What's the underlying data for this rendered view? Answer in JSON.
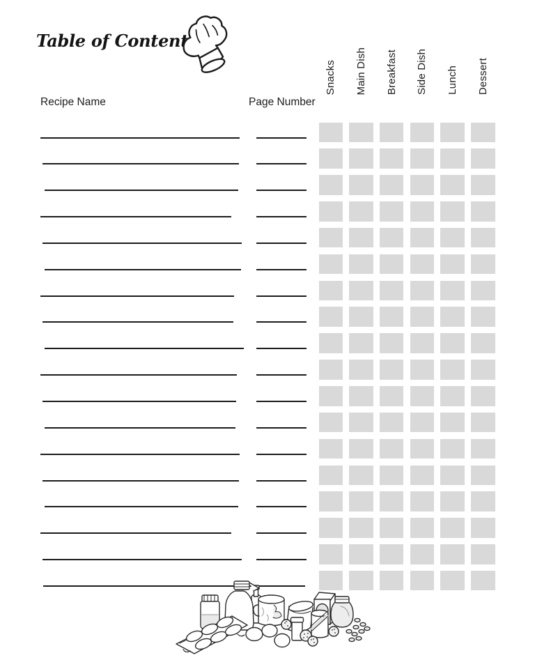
{
  "page": {
    "title": "Table of Contents"
  },
  "header": {
    "recipe_name_label": "Recipe Name",
    "page_number_label": "Page Number"
  },
  "categories": [
    "Snacks",
    "Main Dish",
    "Breakfast",
    "Side Dish",
    "Lunch",
    "Dessert"
  ],
  "table": {
    "row_count": 18
  },
  "icons": {
    "chef_hat": "chef-hat-line-drawing",
    "footer_illustration": "baking-ingredients-line-drawing"
  },
  "colors": {
    "background": "#ffffff",
    "text": "#1c1c1c",
    "line": "#1b1b1b",
    "checkbox_fill": "#d9d9d9"
  },
  "layout_values": {
    "first_line_y": 196.5,
    "row_pitch": 37.85,
    "first_column_x": 457.5,
    "column_pitch": 43.7
  }
}
